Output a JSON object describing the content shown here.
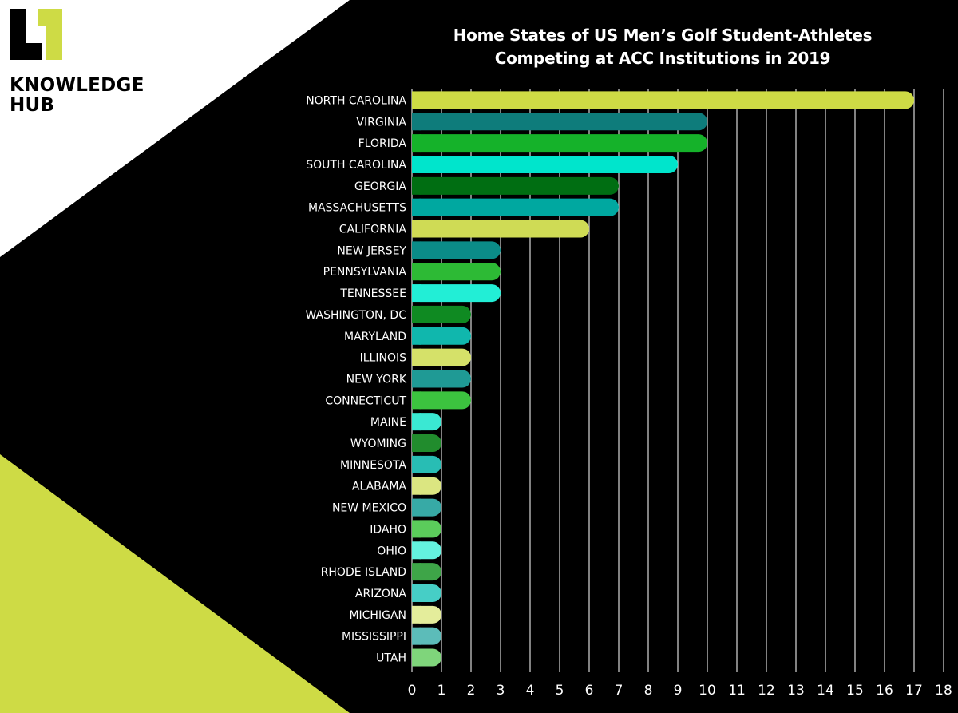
{
  "brand": {
    "line1": "KNOWLEDGE",
    "line2": "HUB"
  },
  "colors": {
    "background": "#000000",
    "white_panel": "#ffffff",
    "accent_lime": "#cedb45"
  },
  "chart_data": {
    "type": "bar",
    "orientation": "horizontal",
    "title": "Home States of US Men’s Golf Student-Athletes Competing at ACC Institutions in 2019",
    "title_lines": [
      "Home States of US Men’s Golf Student-Athletes",
      "Competing at ACC Institutions in 2019"
    ],
    "categories": [
      "NORTH CAROLINA",
      "VIRGINIA",
      "FLORIDA",
      "SOUTH CAROLINA",
      "GEORGIA",
      "MASSACHUSETTS",
      "CALIFORNIA",
      "NEW JERSEY",
      "PENNSYLVANIA",
      "TENNESSEE",
      "WASHINGTON, DC",
      "MARYLAND",
      "ILLINOIS",
      "NEW YORK",
      "CONNECTICUT",
      "MAINE",
      "WYOMING",
      "MINNESOTA",
      "ALABAMA",
      "NEW MEXICO",
      "IDAHO",
      "OHIO",
      "RHODE ISLAND",
      "ARIZONA",
      "MICHIGAN",
      "MISSISSIPPI",
      "UTAH"
    ],
    "values": [
      17,
      10,
      10,
      9,
      7,
      7,
      6,
      3,
      3,
      3,
      2,
      2,
      2,
      2,
      2,
      1,
      1,
      1,
      1,
      1,
      1,
      1,
      1,
      1,
      1,
      1,
      1
    ],
    "colors": [
      "#cedb45",
      "#0e7c7b",
      "#15b22a",
      "#00e5cc",
      "#006e12",
      "#00a8a0",
      "#cfdb55",
      "#0b8c88",
      "#2dba35",
      "#22eed6",
      "#0f8a22",
      "#10b7ad",
      "#d5e169",
      "#1f9a95",
      "#3cc33f",
      "#3ae8d3",
      "#218c2d",
      "#28bdb4",
      "#dbe681",
      "#37aaa6",
      "#5bcc5b",
      "#64f2df",
      "#3ea548",
      "#46cec6",
      "#e4ed9b",
      "#5cbcb9",
      "#7fd57b"
    ],
    "xlim": [
      0,
      18
    ],
    "xticks": [
      0,
      1,
      2,
      3,
      4,
      5,
      6,
      7,
      8,
      9,
      10,
      11,
      12,
      13,
      14,
      15,
      16,
      17,
      18
    ],
    "grid": true
  }
}
